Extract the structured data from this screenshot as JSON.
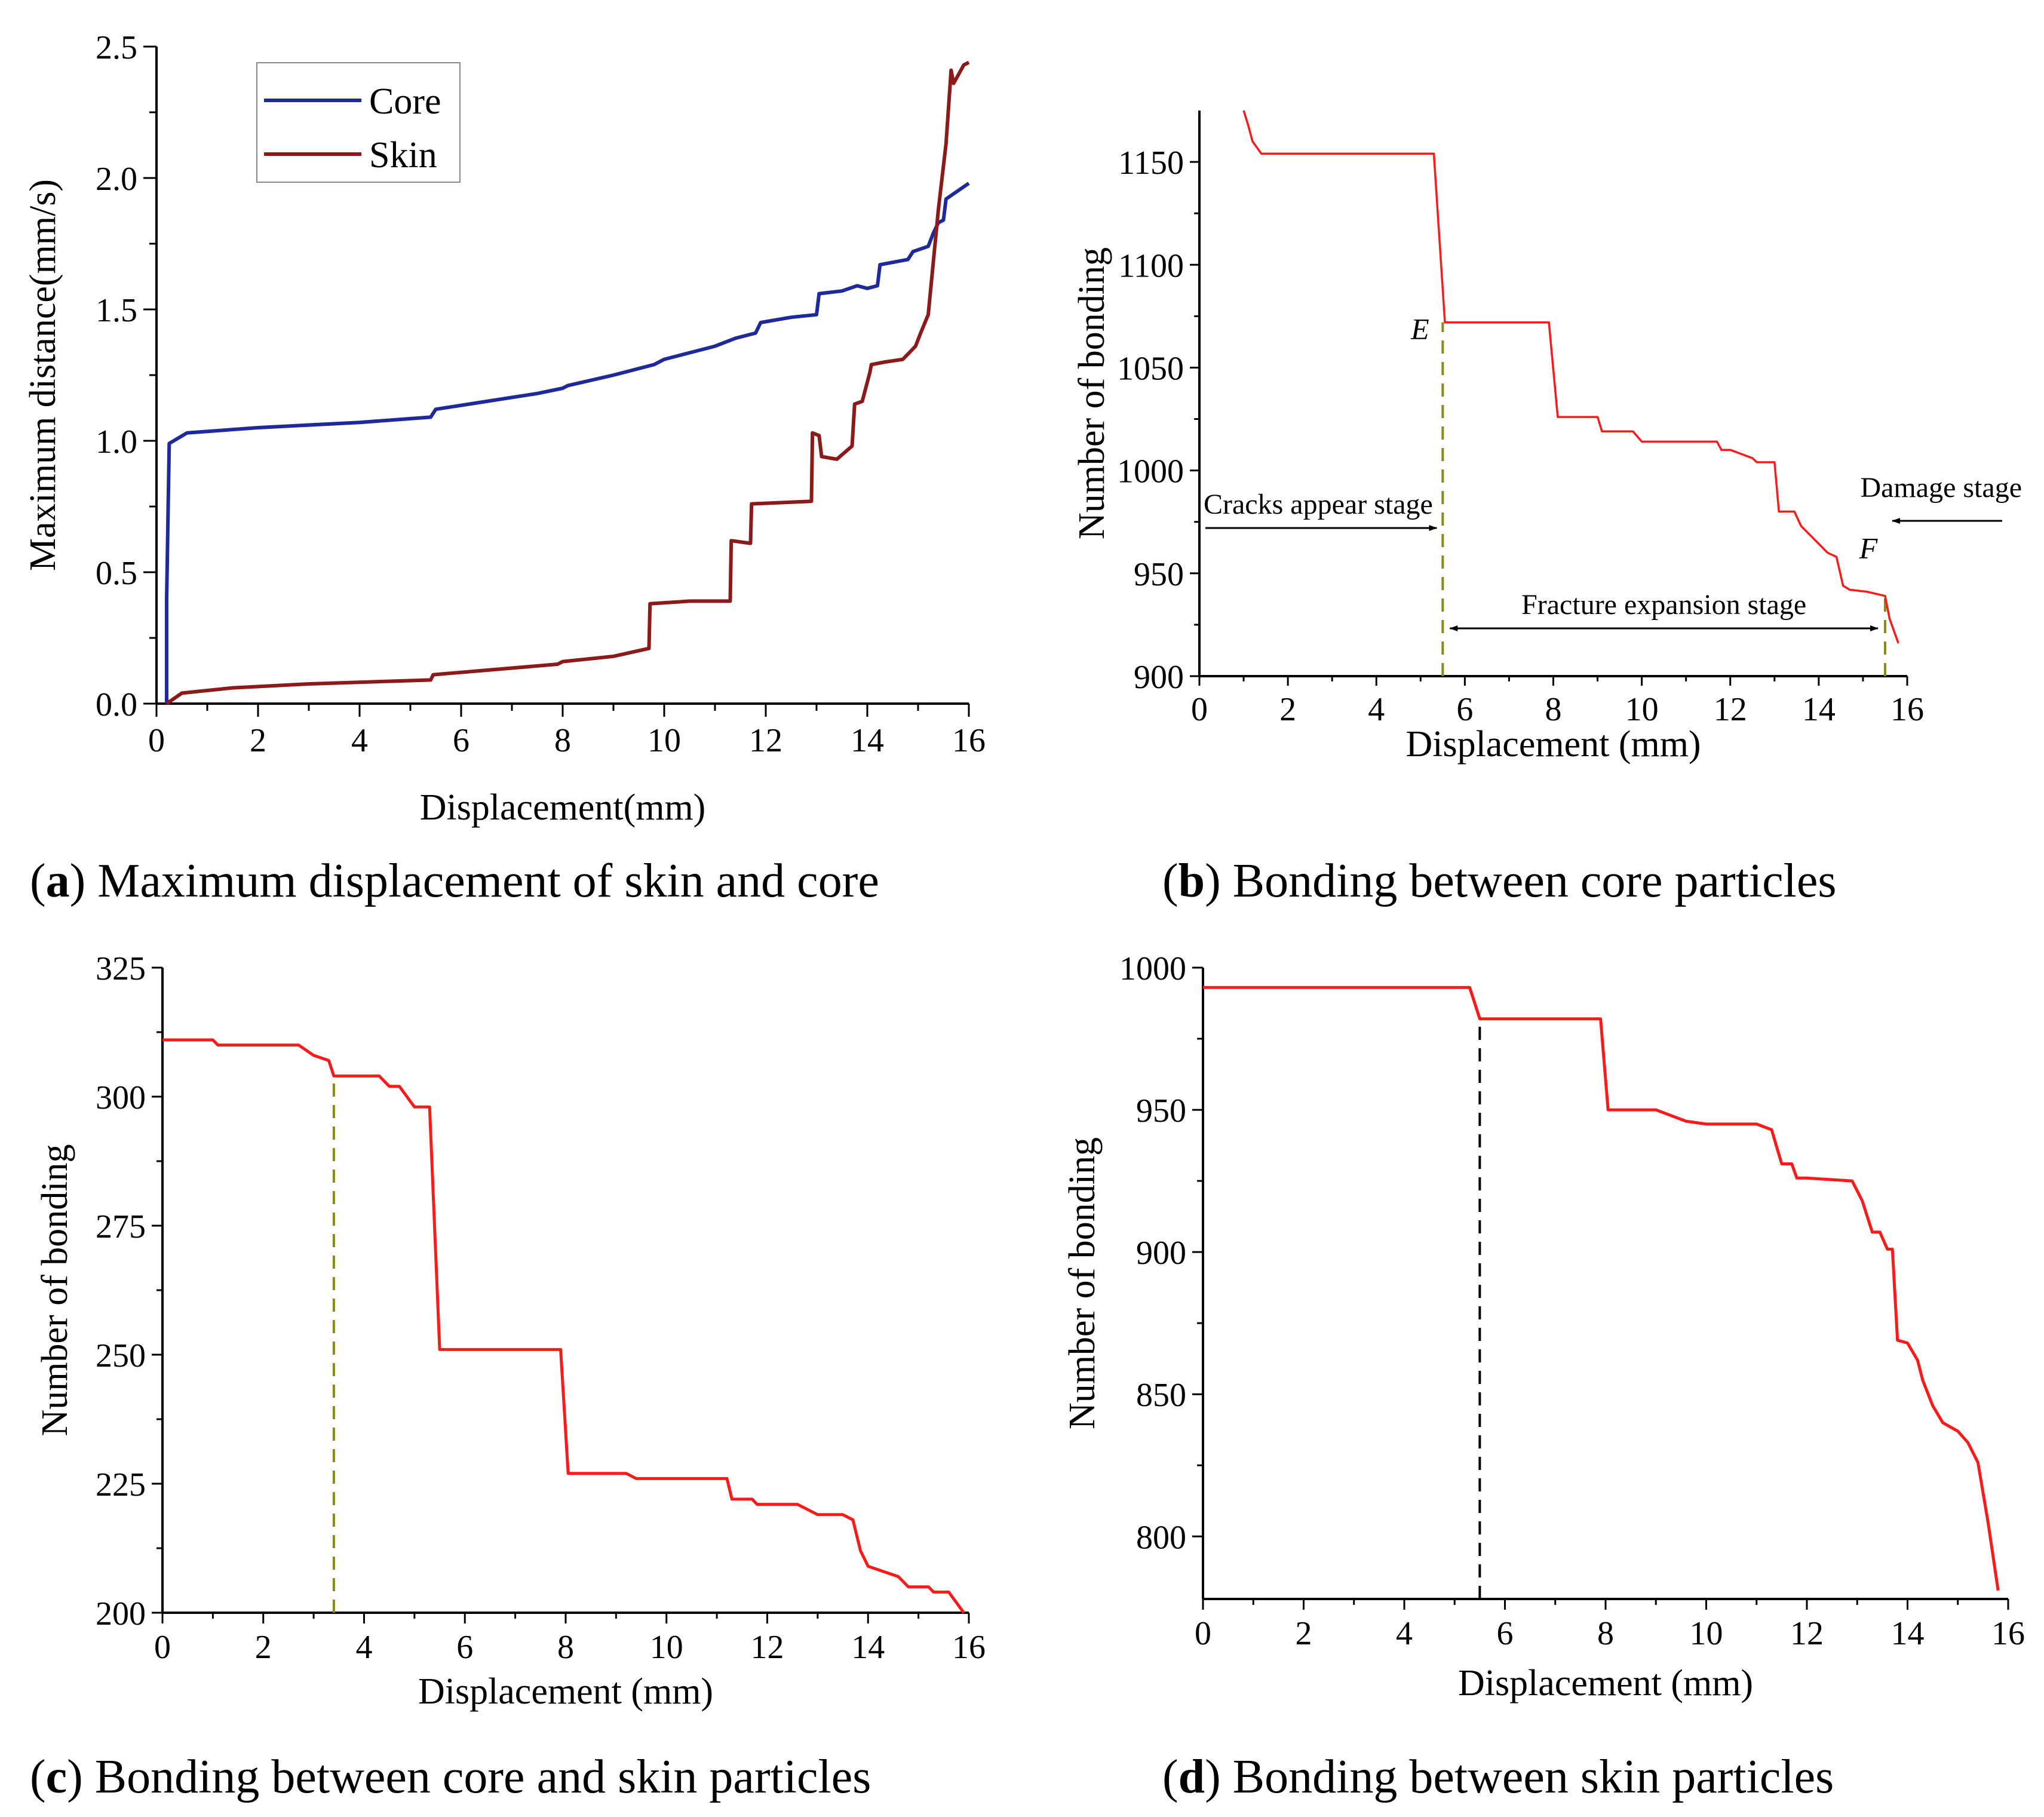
{
  "captions": {
    "a": {
      "letter": "a",
      "text": ") Maximum displacement of skin and core"
    },
    "b": {
      "letter": "b",
      "text": ") Bonding between core particles"
    },
    "c": {
      "letter": "c",
      "text": ") Bonding between core and skin particles"
    },
    "d": {
      "letter": "d",
      "text": ") Bonding between skin particles"
    }
  },
  "annotations_b": {
    "point_e": "E",
    "point_f": "F",
    "cracks": "Cracks appear stage",
    "damage": "Damage stage",
    "fracture": "Fracture expansion stage"
  },
  "colors": {
    "core": "#1f2a9a",
    "skin": "#8b1a1a",
    "red": "#ff1a1a",
    "olive": "#8a8a1a",
    "black": "#000000"
  },
  "chart_data": [
    {
      "id": "a",
      "type": "line",
      "title": "",
      "xlabel": "Displacement(mm)",
      "ylabel": "Maximum distance(mm/s)",
      "xlim": [
        0,
        16
      ],
      "ylim": [
        0,
        2.5
      ],
      "xticks": [
        0,
        2,
        4,
        6,
        8,
        10,
        12,
        14,
        16
      ],
      "yticks": [
        0.0,
        0.5,
        1.0,
        1.5,
        2.0,
        2.5
      ],
      "ytick_labels": [
        "0.0",
        "0.5",
        "1.0",
        "1.5",
        "2.0",
        "2.5"
      ],
      "legend": "top-left",
      "series": [
        {
          "name": "Core",
          "color": "#1f2a9a",
          "x": [
            0.2,
            0.2,
            0.25,
            0.6,
            2,
            4,
            5.4,
            5.5,
            6.5,
            7.5,
            8,
            8.1,
            9,
            9.8,
            10,
            11,
            11.4,
            11.8,
            11.9,
            12.5,
            13,
            13.05,
            13.5,
            13.8,
            14,
            14.2,
            14.25,
            14.8,
            14.9,
            15.2,
            15.3,
            15.4,
            15.5,
            15.55,
            16
          ],
          "y": [
            0.0,
            0.4,
            0.99,
            1.03,
            1.05,
            1.07,
            1.09,
            1.12,
            1.15,
            1.18,
            1.2,
            1.21,
            1.25,
            1.29,
            1.31,
            1.36,
            1.39,
            1.41,
            1.45,
            1.47,
            1.48,
            1.56,
            1.57,
            1.59,
            1.58,
            1.59,
            1.67,
            1.69,
            1.72,
            1.74,
            1.79,
            1.83,
            1.84,
            1.92,
            1.98
          ]
        },
        {
          "name": "Skin",
          "color": "#8b1a1a",
          "x": [
            0.2,
            0.5,
            1.5,
            3,
            5.4,
            5.45,
            7.9,
            8.0,
            9,
            9.7,
            9.72,
            10.5,
            11.3,
            11.32,
            11.7,
            11.72,
            12.9,
            12.92,
            13.05,
            13.1,
            13.4,
            13.7,
            13.75,
            13.9,
            14.05,
            14.08,
            14.35,
            14.7,
            14.95,
            15.05,
            15.2,
            15.3,
            15.4,
            15.55,
            15.65,
            15.7,
            15.9,
            16
          ],
          "y": [
            0.0,
            0.04,
            0.06,
            0.075,
            0.09,
            0.11,
            0.15,
            0.16,
            0.18,
            0.21,
            0.38,
            0.39,
            0.39,
            0.62,
            0.61,
            0.76,
            0.77,
            1.03,
            1.02,
            0.94,
            0.93,
            0.98,
            1.14,
            1.15,
            1.26,
            1.29,
            1.3,
            1.31,
            1.36,
            1.41,
            1.48,
            1.68,
            1.88,
            2.13,
            2.41,
            2.36,
            2.43,
            2.44
          ]
        }
      ]
    },
    {
      "id": "b",
      "type": "line",
      "title": "",
      "xlabel": "Displacement (mm)",
      "ylabel": "Number of bonding",
      "xlim": [
        0,
        16
      ],
      "ylim": [
        900,
        1175
      ],
      "xticks": [
        0,
        2,
        4,
        6,
        8,
        10,
        12,
        14,
        16
      ],
      "yticks": [
        900,
        950,
        1000,
        1050,
        1100,
        1150
      ],
      "ytick_labels": [
        "900",
        "950",
        "1000",
        "1050",
        "1100",
        "1150"
      ],
      "legend": "none",
      "markers_x": [
        5.5,
        15.5
      ],
      "series": [
        {
          "name": "bonding",
          "color": "#ff1a1a",
          "x": [
            1.0,
            1.1,
            1.2,
            1.4,
            5.3,
            5.55,
            7.9,
            8.1,
            9.0,
            9.1,
            9.8,
            10.0,
            11.7,
            11.8,
            12.0,
            12.5,
            12.6,
            13.0,
            13.1,
            13.45,
            13.6,
            14.2,
            14.4,
            14.55,
            14.7,
            15.1,
            15.5,
            15.6,
            15.8
          ],
          "y": [
            1175,
            1168,
            1160,
            1154,
            1154,
            1072,
            1072,
            1026,
            1026,
            1019,
            1019,
            1014,
            1014,
            1010,
            1010,
            1006,
            1004,
            1004,
            980,
            980,
            973,
            960,
            958,
            944,
            942,
            941,
            939,
            928,
            916
          ]
        }
      ]
    },
    {
      "id": "c",
      "type": "line",
      "title": "",
      "xlabel": "Displacement (mm)",
      "ylabel": "Number of bonding",
      "xlim": [
        0,
        16
      ],
      "ylim": [
        200,
        325
      ],
      "xticks": [
        0,
        2,
        4,
        6,
        8,
        10,
        12,
        14,
        16
      ],
      "yticks": [
        200,
        225,
        250,
        275,
        300,
        325
      ],
      "ytick_labels": [
        "200",
        "225",
        "250",
        "275",
        "300",
        "325"
      ],
      "legend": "none",
      "markers_x": [
        3.4
      ],
      "series": [
        {
          "name": "bonding",
          "color": "#ff1a1a",
          "x": [
            0,
            1.0,
            1.1,
            2.7,
            3.0,
            3.3,
            3.4,
            4.3,
            4.5,
            4.7,
            5.0,
            5.3,
            5.5,
            7.9,
            8.05,
            9.2,
            9.4,
            11.2,
            11.3,
            11.7,
            11.8,
            12.6,
            12.8,
            13.0,
            13.5,
            13.7,
            13.85,
            14.0,
            14.3,
            14.6,
            14.8,
            15.2,
            15.3,
            15.6,
            15.9
          ],
          "y": [
            311,
            311,
            310,
            310,
            308,
            307,
            304,
            304,
            302,
            302,
            298,
            298,
            251,
            251,
            227,
            227,
            226,
            226,
            222,
            222,
            221,
            221,
            220,
            219,
            219,
            218,
            212,
            209,
            208,
            207,
            205,
            205,
            204,
            204,
            200
          ]
        }
      ]
    },
    {
      "id": "d",
      "type": "line",
      "title": "",
      "xlabel": "Displacement (mm)",
      "ylabel": "Number of bonding",
      "xlim": [
        0,
        16
      ],
      "ylim": [
        778,
        1000
      ],
      "xticks": [
        0,
        2,
        4,
        6,
        8,
        10,
        12,
        14,
        16
      ],
      "yticks": [
        800,
        850,
        900,
        950,
        1000
      ],
      "ytick_labels": [
        "800",
        "850",
        "900",
        "950",
        "1000"
      ],
      "legend": "none",
      "markers_x": [
        5.5
      ],
      "series": [
        {
          "name": "bonding",
          "color": "#ff1a1a",
          "x": [
            0,
            5.3,
            5.5,
            7.9,
            8.05,
            9.0,
            9.3,
            9.6,
            10.0,
            11.0,
            11.3,
            11.4,
            11.5,
            11.7,
            11.8,
            12.0,
            12.9,
            13.1,
            13.3,
            13.45,
            13.6,
            13.7,
            13.8,
            14.0,
            14.2,
            14.3,
            14.5,
            14.7,
            14.9,
            15.0,
            15.2,
            15.4,
            15.6,
            15.8
          ],
          "y": [
            993,
            993,
            982,
            982,
            950,
            950,
            948,
            946,
            945,
            945,
            943,
            937,
            931,
            931,
            926,
            926,
            925,
            918,
            907,
            907,
            901,
            901,
            869,
            868,
            862,
            855,
            846,
            840,
            838,
            837,
            833,
            826,
            805,
            781
          ]
        }
      ]
    }
  ]
}
